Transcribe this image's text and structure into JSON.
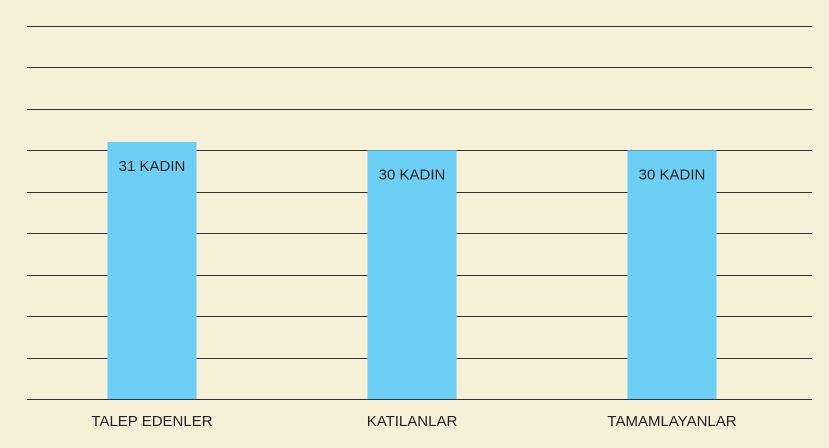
{
  "chart_data": {
    "type": "bar",
    "categories": [
      "TALEP EDENLER",
      "KATILANLAR",
      "TAMAMLAYANLAR"
    ],
    "values": [
      31,
      30,
      30
    ],
    "value_labels": [
      "31 KADIN",
      "30 KADIN",
      "30 KADIN"
    ],
    "color": "#6dcff6",
    "ylim": [
      0,
      45
    ],
    "yticks": [
      0,
      5,
      10,
      15,
      20,
      25,
      30,
      35,
      40,
      45
    ],
    "grid": true
  }
}
